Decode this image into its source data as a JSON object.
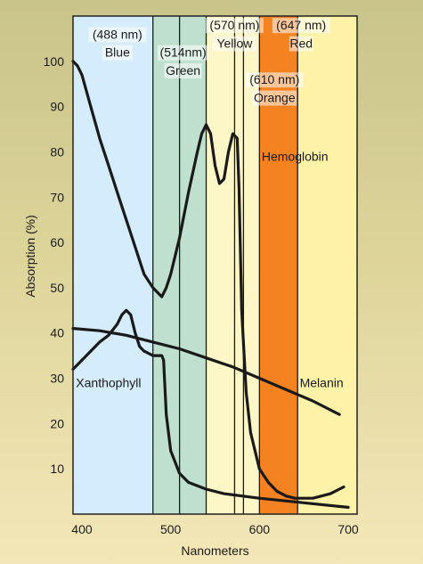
{
  "chart_data": {
    "type": "line",
    "title": "",
    "xlabel": "Nanometers",
    "ylabel": "Absorption (%)",
    "xlim": [
      390,
      710
    ],
    "ylim": [
      0,
      110
    ],
    "x_ticks": [
      "400",
      "500",
      "600",
      "700"
    ],
    "y_ticks": [
      "10",
      "20",
      "30",
      "40",
      "50",
      "60",
      "70",
      "80",
      "90",
      "100"
    ],
    "grid": false,
    "bands": [
      {
        "from": 390,
        "to": 480,
        "color": "#d4ecfb",
        "label_lines": [
          "(488 nm)",
          "Blue"
        ],
        "label_x": 440,
        "label_y": [
          105,
          101
        ]
      },
      {
        "from": 480,
        "to": 540,
        "color": "#bfe0cf",
        "label_lines": [
          "(514nm)",
          "Green"
        ],
        "label_x": 514,
        "label_y": [
          101,
          97
        ]
      },
      {
        "from": 540,
        "to": 600,
        "color": "#fdf6c6",
        "label_lines": [
          "(570 nm)",
          "Yellow"
        ],
        "label_x": 572,
        "label_y": [
          107,
          103
        ]
      },
      {
        "from": 600,
        "to": 643,
        "color": "#f58220",
        "label_lines": [
          "(647 nm)",
          "Red"
        ],
        "label_x": 647,
        "label_y": [
          107,
          103
        ]
      },
      {
        "from": 643,
        "to": 710,
        "color": "#fdf2a8",
        "label_lines": [],
        "label_x": 0,
        "label_y": []
      }
    ],
    "extra_labels": [
      {
        "lines": [
          "(610 nm)",
          "Orange"
        ],
        "x": 617,
        "y": [
          95,
          91
        ]
      }
    ],
    "vlines": [
      480,
      510,
      540,
      572,
      582,
      600,
      643
    ],
    "series": [
      {
        "name": "Hemoglobin",
        "label_x": 640,
        "label_y": 78,
        "x": [
          390,
          395,
          400,
          410,
          420,
          430,
          440,
          450,
          460,
          470,
          480,
          490,
          495,
          500,
          510,
          520,
          530,
          535,
          540,
          545,
          550,
          555,
          560,
          565,
          570,
          575,
          577,
          580,
          585,
          590,
          600,
          610,
          620,
          630,
          640,
          650,
          660,
          670,
          680,
          690,
          695
        ],
        "y": [
          100,
          99,
          97,
          90,
          83,
          77,
          71,
          65,
          59,
          53,
          50,
          48,
          50,
          53,
          61,
          71,
          80,
          84,
          86,
          84,
          77,
          73,
          74,
          80,
          84,
          83,
          72,
          45,
          27,
          18,
          10,
          7,
          5,
          4,
          3.5,
          3.5,
          3.5,
          4,
          4.5,
          5.5,
          6
        ]
      },
      {
        "name": "Xanthophyll",
        "label_x": 430,
        "label_y": 28,
        "x": [
          390,
          400,
          410,
          420,
          430,
          440,
          445,
          450,
          455,
          460,
          465,
          470,
          480,
          490,
          492,
          495,
          500,
          510,
          520,
          540,
          560,
          600,
          650,
          700
        ],
        "y": [
          32,
          34,
          36,
          38,
          39.5,
          42,
          44,
          45,
          44,
          40,
          37,
          36,
          35,
          35,
          34,
          22,
          14,
          9,
          7,
          5.5,
          4.5,
          3.5,
          2.5,
          1.5
        ]
      },
      {
        "name": "Melanin",
        "label_x": 670,
        "label_y": 28,
        "x": [
          390,
          420,
          450,
          480,
          510,
          540,
          570,
          600,
          630,
          660,
          690
        ],
        "y": [
          41,
          40.5,
          39.5,
          38,
          36.5,
          34.5,
          32.5,
          30,
          27.5,
          25,
          22
        ]
      }
    ]
  }
}
